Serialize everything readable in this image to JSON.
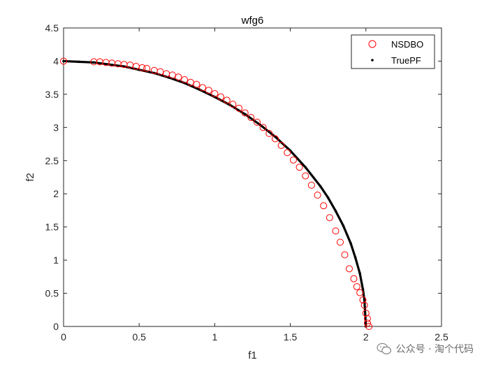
{
  "chart_data": {
    "type": "scatter",
    "title": "wfg6",
    "xlabel": "f1",
    "ylabel": "f2",
    "xlim": [
      0,
      2.5
    ],
    "ylim": [
      0,
      4.5
    ],
    "xticks": [
      "0",
      "0.5",
      "1",
      "1.5",
      "2",
      "2.5"
    ],
    "yticks": [
      "0",
      "0.5",
      "1",
      "1.5",
      "2",
      "2.5",
      "3",
      "3.5",
      "4",
      "4.5"
    ],
    "grid": false,
    "legend_position": "top-right",
    "series": [
      {
        "name": "NSDBO",
        "marker": "open-circle",
        "color": "#ff0000",
        "x": [
          0.0,
          0.2,
          0.24,
          0.28,
          0.32,
          0.36,
          0.4,
          0.44,
          0.48,
          0.52,
          0.55,
          0.6,
          0.64,
          0.68,
          0.72,
          0.76,
          0.8,
          0.84,
          0.88,
          0.92,
          0.96,
          1.0,
          1.04,
          1.08,
          1.12,
          1.16,
          1.2,
          1.24,
          1.28,
          1.32,
          1.36,
          1.4,
          1.44,
          1.48,
          1.52,
          1.56,
          1.6,
          1.64,
          1.68,
          1.72,
          1.76,
          1.8,
          1.83,
          1.86,
          1.89,
          1.92,
          1.94,
          1.96,
          1.98,
          1.99,
          2.0,
          2.01,
          2.01,
          2.02
        ],
        "y": [
          4.0,
          3.99,
          3.99,
          3.98,
          3.97,
          3.96,
          3.95,
          3.94,
          3.92,
          3.9,
          3.89,
          3.86,
          3.84,
          3.81,
          3.79,
          3.76,
          3.72,
          3.68,
          3.65,
          3.6,
          3.56,
          3.51,
          3.46,
          3.41,
          3.35,
          3.29,
          3.22,
          3.15,
          3.08,
          3.0,
          2.91,
          2.83,
          2.73,
          2.62,
          2.51,
          2.4,
          2.27,
          2.13,
          1.98,
          1.82,
          1.64,
          1.44,
          1.27,
          1.08,
          0.87,
          0.72,
          0.6,
          0.51,
          0.4,
          0.32,
          0.2,
          0.12,
          0.05,
          0.0
        ]
      },
      {
        "name": "TruePF",
        "marker": "dot",
        "color": "#000000",
        "x": [
          0.0,
          0.1,
          0.2,
          0.3,
          0.4,
          0.5,
          0.6,
          0.7,
          0.8,
          0.9,
          1.0,
          1.1,
          1.2,
          1.3,
          1.4,
          1.5,
          1.6,
          1.7,
          1.75,
          1.8,
          1.85,
          1.9,
          1.93,
          1.96,
          1.98,
          1.99,
          2.0
        ],
        "y": [
          4.0,
          3.99,
          3.98,
          3.95,
          3.92,
          3.87,
          3.82,
          3.75,
          3.67,
          3.57,
          3.46,
          3.34,
          3.2,
          3.04,
          2.86,
          2.65,
          2.4,
          2.11,
          1.94,
          1.74,
          1.52,
          1.25,
          1.04,
          0.8,
          0.56,
          0.4,
          0.0
        ]
      }
    ]
  },
  "watermark": {
    "text": "公众号 · 淘个代码",
    "icon": "wechat-icon"
  }
}
